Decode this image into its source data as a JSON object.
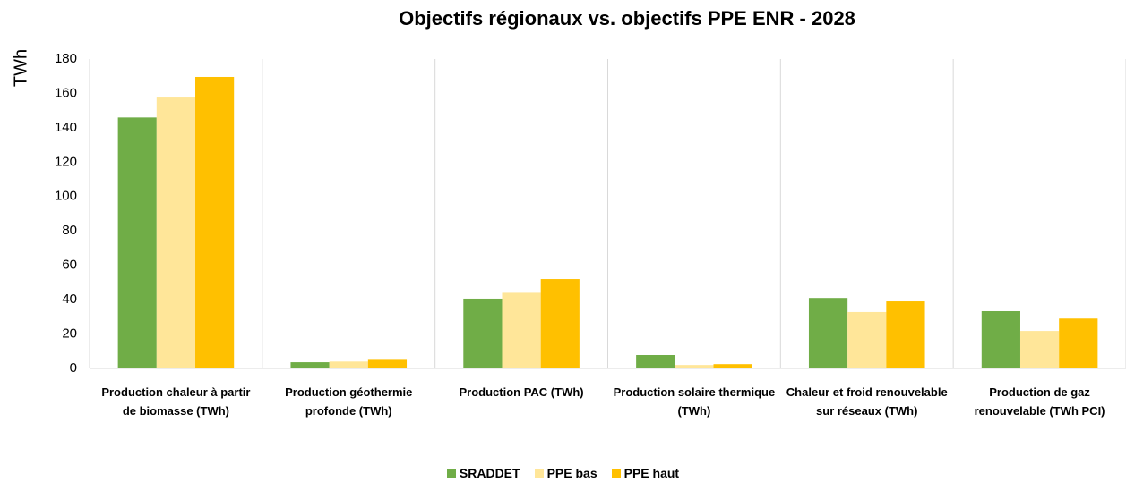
{
  "chart_data": {
    "type": "bar",
    "title": "Objectifs régionaux vs. objectifs PPE ENR - 2028",
    "y_label": "TWh",
    "categories": [
      "Production chaleur à partir de biomasse (TWh)",
      "Production géothermie profonde (TWh)",
      "Production PAC (TWh)",
      "Production solaire thermique (TWh)",
      "Chaleur et froid renouvelable sur réseaux (TWh)",
      "Production de gaz renouvelable (TWh PCI)"
    ],
    "series": [
      {
        "name": "SRADDET",
        "color": "#70ad47",
        "values": [
          146,
          3.6,
          40.6,
          7.8,
          41,
          33.3
        ]
      },
      {
        "name": "PPE bas",
        "color": "#ffe699",
        "values": [
          157.6,
          4,
          44,
          2,
          32.8,
          21.8
        ]
      },
      {
        "name": "PPE haut",
        "color": "#ffc000",
        "values": [
          169.6,
          5,
          52,
          2.5,
          39,
          29
        ]
      }
    ],
    "ylim": [
      0,
      180
    ],
    "yticks": [
      0,
      20,
      40,
      60,
      80,
      100,
      120,
      140,
      160,
      180
    ],
    "grid": false,
    "legend": "bottom"
  }
}
